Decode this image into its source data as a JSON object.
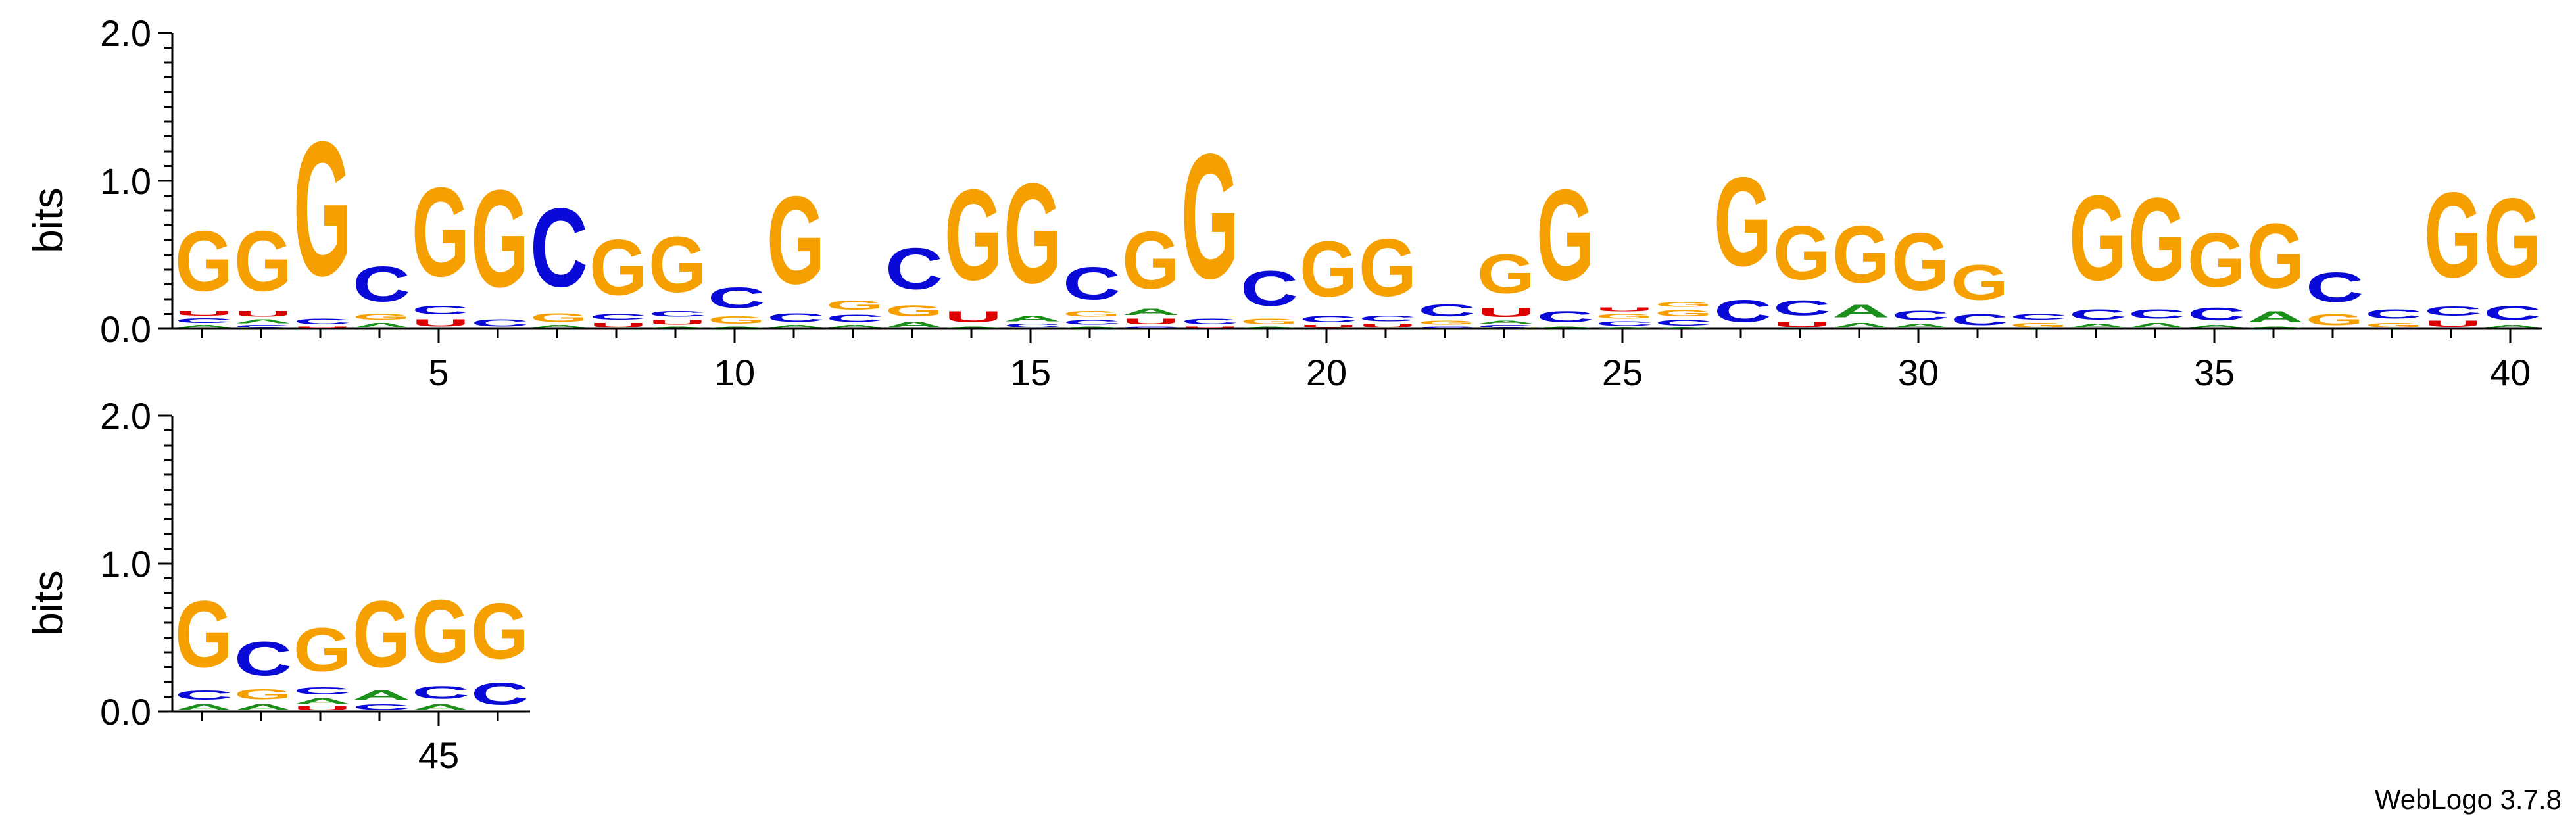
{
  "chart_data": {
    "type": "sequence-logo",
    "ylabel": "bits",
    "ylim": [
      0,
      2.0
    ],
    "y_ticks": [
      "0.0",
      "1.0",
      "2.0"
    ],
    "y_tick_values": [
      0,
      1,
      2
    ],
    "x_ticks": [
      5,
      10,
      15,
      20,
      25,
      30,
      35,
      40,
      45
    ],
    "alphabet": [
      "A",
      "C",
      "G",
      "U"
    ],
    "colors": {
      "A": "#1a8f1a",
      "C": "#0a0ad8",
      "G": "#f5a000",
      "U": "#dd0000"
    },
    "rows": [
      {
        "start": 1,
        "end": 40
      },
      {
        "start": 41,
        "end": 46
      }
    ],
    "positions": [
      {
        "pos": 1,
        "letters": [
          [
            "A",
            0.03
          ],
          [
            "C",
            0.05
          ],
          [
            "U",
            0.05
          ],
          [
            "G",
            0.65
          ]
        ]
      },
      {
        "pos": 2,
        "letters": [
          [
            "C",
            0.03
          ],
          [
            "A",
            0.04
          ],
          [
            "U",
            0.06
          ],
          [
            "G",
            0.65
          ]
        ]
      },
      {
        "pos": 3,
        "letters": [
          [
            "U",
            0.02
          ],
          [
            "C",
            0.06
          ],
          [
            "G",
            1.45
          ]
        ]
      },
      {
        "pos": 4,
        "letters": [
          [
            "A",
            0.05
          ],
          [
            "G",
            0.06
          ],
          [
            "C",
            0.38
          ]
        ]
      },
      {
        "pos": 5,
        "letters": [
          [
            "U",
            0.08
          ],
          [
            "C",
            0.09
          ],
          [
            "G",
            0.96
          ]
        ]
      },
      {
        "pos": 6,
        "letters": [
          [
            "C",
            0.08
          ],
          [
            "G",
            1.05
          ]
        ]
      },
      {
        "pos": 7,
        "letters": [
          [
            "A",
            0.03
          ],
          [
            "G",
            0.09
          ],
          [
            "C",
            0.85
          ]
        ]
      },
      {
        "pos": 8,
        "letters": [
          [
            "U",
            0.05
          ],
          [
            "C",
            0.06
          ],
          [
            "G",
            0.6
          ]
        ]
      },
      {
        "pos": 9,
        "letters": [
          [
            "A",
            0.02
          ],
          [
            "U",
            0.05
          ],
          [
            "C",
            0.06
          ],
          [
            "G",
            0.6
          ]
        ]
      },
      {
        "pos": 10,
        "letters": [
          [
            "A",
            0.02
          ],
          [
            "G",
            0.08
          ],
          [
            "C",
            0.22
          ]
        ]
      },
      {
        "pos": 11,
        "letters": [
          [
            "A",
            0.03
          ],
          [
            "C",
            0.09
          ],
          [
            "G",
            0.95
          ]
        ]
      },
      {
        "pos": 12,
        "letters": [
          [
            "A",
            0.03
          ],
          [
            "C",
            0.08
          ],
          [
            "G",
            0.1
          ]
        ]
      },
      {
        "pos": 13,
        "letters": [
          [
            "A",
            0.06
          ],
          [
            "G",
            0.12
          ],
          [
            "C",
            0.45
          ]
        ]
      },
      {
        "pos": 14,
        "letters": [
          [
            "A",
            0.02
          ],
          [
            "U",
            0.12
          ],
          [
            "G",
            0.98
          ]
        ]
      },
      {
        "pos": 15,
        "letters": [
          [
            "C",
            0.04
          ],
          [
            "A",
            0.06
          ],
          [
            "G",
            1.08
          ]
        ]
      },
      {
        "pos": 16,
        "letters": [
          [
            "A",
            0.02
          ],
          [
            "C",
            0.05
          ],
          [
            "G",
            0.06
          ],
          [
            "C",
            0.35
          ]
        ]
      },
      {
        "pos": 17,
        "letters": [
          [
            "C",
            0.02
          ],
          [
            "U",
            0.06
          ],
          [
            "A",
            0.07
          ],
          [
            "G",
            0.62
          ]
        ]
      },
      {
        "pos": 18,
        "letters": [
          [
            "U",
            0.02
          ],
          [
            "C",
            0.06
          ],
          [
            "G",
            1.35
          ]
        ]
      },
      {
        "pos": 19,
        "letters": [
          [
            "A",
            0.02
          ],
          [
            "G",
            0.06
          ],
          [
            "C",
            0.38
          ]
        ]
      },
      {
        "pos": 20,
        "letters": [
          [
            "U",
            0.03
          ],
          [
            "C",
            0.07
          ],
          [
            "G",
            0.6
          ]
        ]
      },
      {
        "pos": 21,
        "letters": [
          [
            "U",
            0.04
          ],
          [
            "C",
            0.06
          ],
          [
            "G",
            0.62
          ]
        ]
      },
      {
        "pos": 22,
        "letters": [
          [
            "C",
            0.02
          ],
          [
            "G",
            0.04
          ],
          [
            "C",
            0.13
          ]
        ]
      },
      {
        "pos": 23,
        "letters": [
          [
            "C",
            0.03
          ],
          [
            "A",
            0.03
          ],
          [
            "U",
            0.1
          ],
          [
            "G",
            0.42
          ]
        ]
      },
      {
        "pos": 24,
        "letters": [
          [
            "A",
            0.02
          ],
          [
            "C",
            0.12
          ],
          [
            "G",
            0.98
          ]
        ]
      },
      {
        "pos": 25,
        "letters": [
          [
            "A",
            0.01
          ],
          [
            "C",
            0.05
          ],
          [
            "G",
            0.05
          ],
          [
            "U",
            0.04
          ]
        ]
      },
      {
        "pos": 26,
        "letters": [
          [
            "A",
            0.01
          ],
          [
            "C",
            0.06
          ],
          [
            "G",
            0.07
          ],
          [
            "G",
            0.05
          ]
        ]
      },
      {
        "pos": 27,
        "letters": [
          [
            "C",
            0.24
          ],
          [
            "G",
            0.96
          ]
        ]
      },
      {
        "pos": 28,
        "letters": [
          [
            "U",
            0.06
          ],
          [
            "C",
            0.16
          ],
          [
            "G",
            0.58
          ]
        ]
      },
      {
        "pos": 29,
        "letters": [
          [
            "A",
            0.05
          ],
          [
            "A",
            0.14
          ],
          [
            "G",
            0.62
          ]
        ]
      },
      {
        "pos": 30,
        "letters": [
          [
            "A",
            0.04
          ],
          [
            "C",
            0.1
          ],
          [
            "G",
            0.62
          ]
        ]
      },
      {
        "pos": 31,
        "letters": [
          [
            "C",
            0.12
          ],
          [
            "G",
            0.38
          ]
        ]
      },
      {
        "pos": 32,
        "letters": [
          [
            "G",
            0.05
          ],
          [
            "C",
            0.06
          ]
        ]
      },
      {
        "pos": 33,
        "letters": [
          [
            "A",
            0.04
          ],
          [
            "C",
            0.11
          ],
          [
            "G",
            0.92
          ]
        ]
      },
      {
        "pos": 34,
        "letters": [
          [
            "A",
            0.05
          ],
          [
            "C",
            0.1
          ],
          [
            "G",
            0.9
          ]
        ]
      },
      {
        "pos": 35,
        "letters": [
          [
            "A",
            0.03
          ],
          [
            "C",
            0.14
          ],
          [
            "G",
            0.58
          ]
        ]
      },
      {
        "pos": 36,
        "letters": [
          [
            "A",
            0.02
          ],
          [
            "A",
            0.12
          ],
          [
            "G",
            0.7
          ]
        ]
      },
      {
        "pos": 37,
        "letters": [
          [
            "G",
            0.12
          ],
          [
            "C",
            0.32
          ]
        ]
      },
      {
        "pos": 38,
        "letters": [
          [
            "G",
            0.05
          ],
          [
            "C",
            0.1
          ]
        ]
      },
      {
        "pos": 39,
        "letters": [
          [
            "U",
            0.07
          ],
          [
            "C",
            0.1
          ],
          [
            "G",
            0.92
          ]
        ]
      },
      {
        "pos": 40,
        "letters": [
          [
            "A",
            0.03
          ],
          [
            "C",
            0.15
          ],
          [
            "G",
            0.86
          ]
        ]
      },
      {
        "pos": 41,
        "letters": [
          [
            "A",
            0.06
          ],
          [
            "C",
            0.1
          ],
          [
            "G",
            0.72
          ]
        ]
      },
      {
        "pos": 42,
        "letters": [
          [
            "A",
            0.06
          ],
          [
            "G",
            0.11
          ],
          [
            "C",
            0.37
          ]
        ]
      },
      {
        "pos": 43,
        "letters": [
          [
            "U",
            0.04
          ],
          [
            "A",
            0.06
          ],
          [
            "C",
            0.08
          ],
          [
            "G",
            0.47
          ]
        ]
      },
      {
        "pos": 44,
        "letters": [
          [
            "C",
            0.06
          ],
          [
            "A",
            0.1
          ],
          [
            "G",
            0.72
          ]
        ]
      },
      {
        "pos": 45,
        "letters": [
          [
            "A",
            0.06
          ],
          [
            "C",
            0.14
          ],
          [
            "G",
            0.68
          ]
        ]
      },
      {
        "pos": 46,
        "letters": [
          [
            "C",
            0.24
          ],
          [
            "G",
            0.6
          ]
        ]
      }
    ]
  },
  "footer": {
    "version_label": "WebLogo 3.7.8"
  }
}
